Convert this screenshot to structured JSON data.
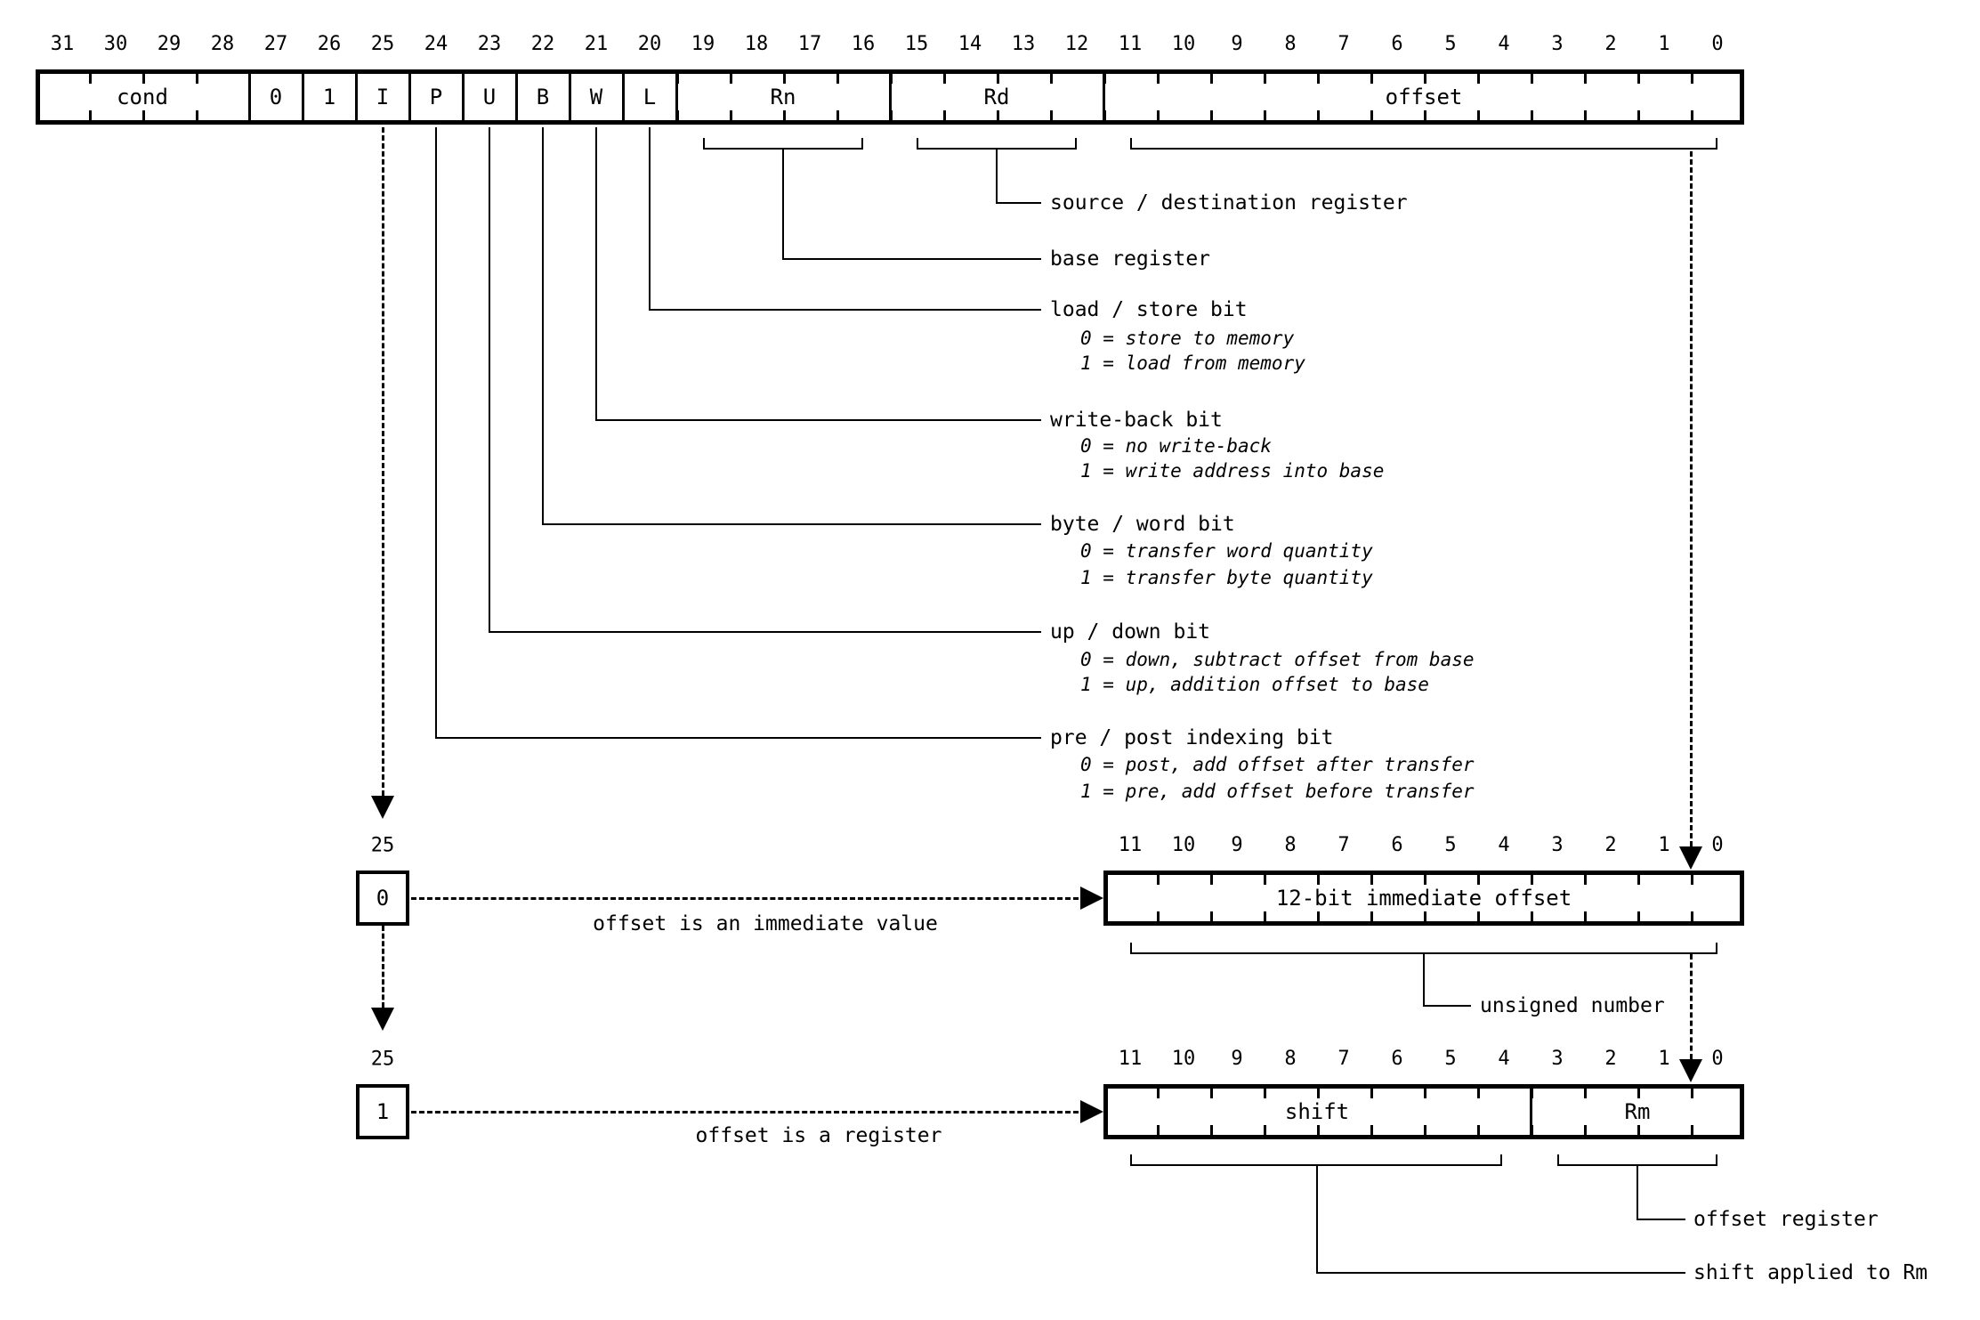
{
  "top_bits": [
    "31",
    "30",
    "29",
    "28",
    "27",
    "26",
    "25",
    "24",
    "23",
    "22",
    "21",
    "20",
    "19",
    "18",
    "17",
    "16",
    "15",
    "14",
    "13",
    "12",
    "11",
    "10",
    "9",
    "8",
    "7",
    "6",
    "5",
    "4",
    "3",
    "2",
    "1",
    "0"
  ],
  "low_bits": [
    "11",
    "10",
    "9",
    "8",
    "7",
    "6",
    "5",
    "4",
    "3",
    "2",
    "1",
    "0"
  ],
  "top_fields": {
    "cond": "cond",
    "b27": "0",
    "b26": "1",
    "i": "I",
    "p": "P",
    "u": "U",
    "b": "B",
    "w": "W",
    "l": "L",
    "rn": "Rn",
    "rd": "Rd",
    "offset": "offset"
  },
  "annotations": {
    "src_dst": {
      "label": "source / destination register"
    },
    "base": {
      "label": "base register"
    },
    "load_store": {
      "label": "load / store bit",
      "note0": "0 = store to memory",
      "note1": "1 = load from memory"
    },
    "write_back": {
      "label": "write-back bit",
      "note0": "0 = no write-back",
      "note1": "1 = write address into base"
    },
    "byte_word": {
      "label": "byte / word bit",
      "note0": "0 = transfer word quantity",
      "note1": "1 = transfer byte quantity"
    },
    "up_down": {
      "label": "up / down bit",
      "note0": "0 = down, subtract offset from base",
      "note1": "1 = up, addition offset to base"
    },
    "pre_post": {
      "label": "pre / post indexing bit",
      "note0": "0 = post, add offset after transfer",
      "note1": "1 = pre, add offset before transfer"
    }
  },
  "immediate_variant": {
    "bit_number": "25",
    "bit_value": "0",
    "arrow_label": "offset is an immediate value",
    "box_label": "12-bit immediate offset",
    "bracket_label": "unsigned number"
  },
  "register_variant": {
    "bit_number": "25",
    "bit_value": "1",
    "arrow_label": "offset is a register",
    "shift_label": "shift",
    "rm_label": "Rm",
    "offset_register_label": "offset register",
    "shift_applied_label": "shift applied to Rm"
  }
}
